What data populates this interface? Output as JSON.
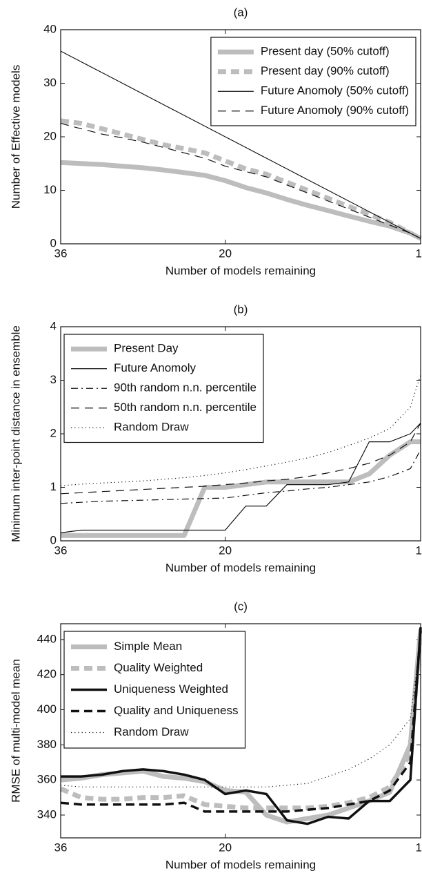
{
  "chart_data": [
    {
      "type": "line",
      "title": "(a)",
      "xlabel": "Number of models remaining",
      "ylabel": "Number of Effective models",
      "x": [
        36,
        34,
        32,
        30,
        28,
        26,
        24,
        22,
        20,
        18,
        16,
        14,
        12,
        10,
        8,
        6,
        4,
        2,
        1
      ],
      "xlim": [
        36,
        1
      ],
      "xticks": [
        36,
        20,
        1
      ],
      "ylim": [
        0,
        40
      ],
      "yticks": [
        0,
        10,
        20,
        30,
        40
      ],
      "legend": "upper right",
      "series": [
        {
          "name": "Present day (50% cutoff)",
          "color": "#bdbdbd",
          "linestyle": "solid",
          "linewidth": "thick",
          "values": [
            15.2,
            15,
            14.8,
            14.5,
            14.2,
            13.8,
            13.3,
            12.8,
            11.8,
            10.5,
            9.5,
            8.3,
            7.2,
            6.2,
            5.2,
            4.2,
            3.3,
            2,
            1
          ]
        },
        {
          "name": "Present day (90% cutoff)",
          "color": "#bdbdbd",
          "linestyle": "dashed",
          "linewidth": "thick",
          "values": [
            23,
            22.5,
            21.5,
            20.5,
            19.5,
            18.5,
            17.8,
            17,
            15.5,
            14,
            13,
            11.5,
            10,
            8.5,
            7,
            5.5,
            4,
            2,
            1
          ]
        },
        {
          "name": "Future Anomoly (50% cutoff)",
          "color": "#111111",
          "linestyle": "solid",
          "linewidth": "thin",
          "values": [
            36,
            34,
            32,
            30,
            28,
            26,
            24,
            22,
            20,
            18,
            16,
            14,
            12,
            10,
            8,
            6,
            4,
            2,
            1
          ]
        },
        {
          "name": "Future Anomoly (90% cutoff)",
          "color": "#111111",
          "linestyle": "dashed",
          "linewidth": "thin",
          "values": [
            22.5,
            21.5,
            20.5,
            19.8,
            19,
            18,
            17,
            16,
            14.5,
            13.5,
            12.5,
            11,
            9.5,
            8,
            6.5,
            5,
            3.5,
            2,
            1
          ]
        }
      ]
    },
    {
      "type": "line",
      "title": "(b)",
      "xlabel": "Number of models remaining",
      "ylabel": "Minimum inter-point distance in ensemble",
      "x": [
        36,
        34,
        32,
        30,
        28,
        26,
        24,
        22,
        20,
        18,
        16,
        14,
        12,
        10,
        8,
        6,
        4,
        2,
        1
      ],
      "xlim": [
        36,
        1
      ],
      "xticks": [
        36,
        20,
        1
      ],
      "ylim": [
        0,
        4
      ],
      "yticks": [
        0,
        1,
        2,
        3,
        4
      ],
      "legend": "upper left",
      "series": [
        {
          "name": "Present Day",
          "color": "#bdbdbd",
          "linestyle": "solid",
          "linewidth": "thick",
          "values": [
            0.1,
            0.1,
            0.1,
            0.1,
            0.1,
            0.1,
            0.1,
            1.0,
            1.0,
            1.05,
            1.1,
            1.1,
            1.1,
            1.1,
            1.1,
            1.25,
            1.6,
            1.85,
            1.85
          ]
        },
        {
          "name": "Future Anomoly",
          "color": "#111111",
          "linestyle": "solid",
          "linewidth": "thin",
          "values": [
            0.15,
            0.2,
            0.2,
            0.2,
            0.2,
            0.2,
            0.2,
            0.2,
            0.2,
            0.65,
            0.65,
            1.05,
            1.05,
            1.05,
            1.1,
            1.85,
            1.85,
            2.0,
            2.2
          ]
        },
        {
          "name": "90th random n.n. percentile",
          "color": "#111111",
          "linestyle": "dashdot",
          "linewidth": "thin",
          "values": [
            0.7,
            0.72,
            0.74,
            0.75,
            0.76,
            0.77,
            0.78,
            0.79,
            0.8,
            0.85,
            0.9,
            0.93,
            0.97,
            1.0,
            1.05,
            1.1,
            1.2,
            1.35,
            1.7
          ]
        },
        {
          "name": "50th random n.n. percentile",
          "color": "#111111",
          "linestyle": "dashed",
          "linewidth": "thin",
          "values": [
            0.88,
            0.9,
            0.92,
            0.94,
            0.96,
            0.98,
            1.0,
            1.02,
            1.05,
            1.08,
            1.12,
            1.15,
            1.2,
            1.27,
            1.35,
            1.45,
            1.6,
            1.85,
            2.2
          ]
        },
        {
          "name": "Random Draw",
          "color": "#111111",
          "linestyle": "dotted",
          "linewidth": "thin",
          "values": [
            1.03,
            1.06,
            1.08,
            1.1,
            1.12,
            1.15,
            1.18,
            1.22,
            1.27,
            1.33,
            1.4,
            1.47,
            1.55,
            1.65,
            1.78,
            1.92,
            2.1,
            2.5,
            3.1
          ]
        }
      ]
    },
    {
      "type": "line",
      "title": "(c)",
      "xlabel": "Number of models remaining",
      "ylabel": "RMSE of multi-model mean",
      "x": [
        36,
        34,
        32,
        30,
        28,
        26,
        24,
        22,
        20,
        18,
        16,
        14,
        12,
        10,
        8,
        6,
        4,
        2,
        1
      ],
      "xlim": [
        36,
        1
      ],
      "xticks": [
        36,
        20,
        1
      ],
      "ylim": [
        327,
        449
      ],
      "yticks": [
        340,
        360,
        380,
        400,
        420,
        440
      ],
      "legend": "upper left",
      "series": [
        {
          "name": "Simple Mean",
          "color": "#bdbdbd",
          "linestyle": "solid",
          "linewidth": "thick",
          "values": [
            360,
            361,
            363,
            364,
            365,
            362,
            361,
            359,
            354,
            353,
            340,
            336,
            338,
            340,
            344,
            348,
            353,
            380,
            446
          ]
        },
        {
          "name": "Quality Weighted",
          "color": "#bdbdbd",
          "linestyle": "dashed",
          "linewidth": "thick",
          "values": [
            355,
            350,
            349,
            349,
            350,
            350,
            351,
            346,
            345,
            344,
            344,
            344,
            344,
            345,
            347,
            350,
            356,
            375,
            445
          ]
        },
        {
          "name": "Uniqueness Weighted",
          "color": "#111111",
          "linestyle": "solid",
          "linewidth": "medium",
          "values": [
            362,
            362,
            363,
            365,
            366,
            365,
            363,
            360,
            352,
            354,
            352,
            337,
            335,
            339,
            338,
            348,
            348,
            360,
            447
          ]
        },
        {
          "name": "Quality and Uniqueness",
          "color": "#111111",
          "linestyle": "dashed",
          "linewidth": "medium",
          "values": [
            347,
            346,
            346,
            346,
            346,
            346,
            347,
            342,
            342,
            342,
            342,
            342,
            343,
            344,
            346,
            348,
            354,
            370,
            445
          ]
        },
        {
          "name": "Random Draw",
          "color": "#111111",
          "linestyle": "dotted",
          "linewidth": "thin",
          "values": [
            357,
            356,
            356,
            356,
            356,
            356,
            356,
            356,
            356,
            356,
            356,
            357,
            358,
            362,
            366,
            372,
            380,
            395,
            440
          ]
        }
      ]
    }
  ]
}
